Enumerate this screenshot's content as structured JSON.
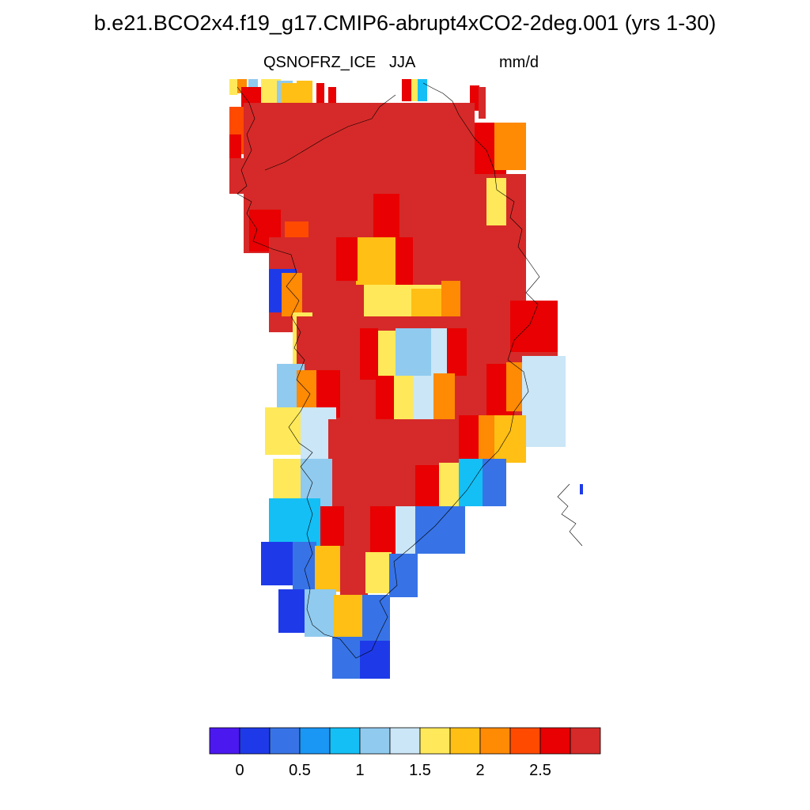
{
  "title": "b.e21.BCO2x4.f19_g17.CMIP6-abrupt4xCO2-2deg.001 (yrs 1-30)",
  "variable": "QSNOFRZ_ICE",
  "season": "JJA",
  "units": "mm/d",
  "colorbar": {
    "colors": [
      "#4b18f0",
      "#1e3ae8",
      "#3773e6",
      "#1a96f5",
      "#14bff5",
      "#90caef",
      "#cae6f7",
      "#ffe95a",
      "#ffbf14",
      "#ff8a04",
      "#ff4a00",
      "#e80002",
      "#d52a29"
    ],
    "tick_labels": [
      "0",
      "0.5",
      "1",
      "1.5",
      "2",
      "2.5"
    ]
  },
  "map_data": {
    "type": "gridded-field",
    "cells": [
      [
        "Y",
        290,
        100,
        300,
        120
      ],
      [
        "O",
        300,
        100,
        312,
        118
      ],
      [
        "L",
        314,
        100,
        326,
        122
      ],
      [
        "R",
        305,
        110,
        330,
        145
      ],
      [
        "Y",
        330,
        100,
        355,
        130
      ],
      [
        "L",
        350,
        102,
        370,
        140
      ],
      [
        "A",
        355,
        105,
        378,
        150
      ],
      [
        "A",
        375,
        102,
        395,
        145
      ],
      [
        "R",
        400,
        105,
        410,
        150
      ],
      [
        "R",
        415,
        110,
        425,
        145
      ],
      [
        "R",
        508,
        100,
        520,
        128
      ],
      [
        "S",
        528,
        100,
        540,
        128
      ],
      [
        "Y",
        520,
        100,
        528,
        128
      ],
      [
        "R",
        594,
        108,
        606,
        140
      ],
      [
        "D",
        605,
        110,
        614,
        150
      ],
      [
        "N",
        290,
        135,
        315,
        185
      ],
      [
        "N",
        300,
        160,
        340,
        195
      ],
      [
        "R",
        290,
        170,
        305,
        240
      ],
      [
        "D",
        290,
        200,
        310,
        245
      ],
      [
        "D",
        308,
        130,
        600,
        320
      ],
      [
        "R",
        600,
        155,
        640,
        230
      ],
      [
        "O",
        625,
        155,
        665,
        215
      ],
      [
        "D",
        310,
        250,
        370,
        320
      ],
      [
        "D",
        600,
        220,
        665,
        330
      ],
      [
        "Y",
        615,
        225,
        640,
        285
      ],
      [
        "R",
        315,
        265,
        355,
        318
      ],
      [
        "N",
        360,
        280,
        390,
        345
      ],
      [
        "D",
        340,
        300,
        665,
        420
      ],
      [
        "R",
        472,
        245,
        505,
        305
      ],
      [
        "A",
        450,
        300,
        505,
        360
      ],
      [
        "R",
        500,
        300,
        522,
        360
      ],
      [
        "R",
        425,
        300,
        452,
        355
      ],
      [
        "B",
        340,
        340,
        375,
        395
      ],
      [
        "O",
        356,
        345,
        382,
        400
      ],
      [
        "Y",
        370,
        395,
        395,
        460
      ],
      [
        "Y",
        460,
        360,
        580,
        420
      ],
      [
        "A",
        520,
        365,
        565,
        420
      ],
      [
        "O",
        558,
        355,
        582,
        412
      ],
      [
        "D",
        375,
        400,
        705,
        540
      ],
      [
        "R",
        645,
        380,
        705,
        445
      ],
      [
        "R",
        455,
        415,
        478,
        480
      ],
      [
        "Y",
        478,
        418,
        502,
        478
      ],
      [
        "L",
        500,
        415,
        545,
        475
      ],
      [
        "I",
        545,
        415,
        568,
        475
      ],
      [
        "R",
        565,
        415,
        590,
        475
      ],
      [
        "L",
        350,
        460,
        385,
        515
      ],
      [
        "O",
        375,
        468,
        405,
        522
      ],
      [
        "R",
        400,
        468,
        430,
        528
      ],
      [
        "R",
        475,
        475,
        500,
        535
      ],
      [
        "Y",
        498,
        475,
        525,
        535
      ],
      [
        "I",
        522,
        475,
        548,
        535
      ],
      [
        "O",
        548,
        472,
        575,
        535
      ],
      [
        "R",
        615,
        460,
        650,
        525
      ],
      [
        "O",
        640,
        458,
        670,
        520
      ],
      [
        "I",
        660,
        450,
        715,
        565
      ],
      [
        "Y",
        335,
        515,
        385,
        575
      ],
      [
        "I",
        380,
        515,
        425,
        580
      ],
      [
        "D",
        415,
        530,
        600,
        640
      ],
      [
        "R",
        580,
        525,
        610,
        585
      ],
      [
        "O",
        605,
        525,
        635,
        580
      ],
      [
        "A",
        625,
        525,
        665,
        585
      ],
      [
        "Y",
        345,
        580,
        385,
        640
      ],
      [
        "L",
        380,
        580,
        420,
        640
      ],
      [
        "R",
        525,
        588,
        558,
        640
      ],
      [
        "Y",
        555,
        585,
        585,
        640
      ],
      [
        "S",
        580,
        580,
        612,
        640
      ],
      [
        "M",
        610,
        580,
        640,
        640
      ],
      [
        "S",
        340,
        630,
        405,
        690
      ],
      [
        "R",
        405,
        640,
        440,
        690
      ],
      [
        "D",
        435,
        640,
        470,
        700
      ],
      [
        "R",
        468,
        640,
        500,
        700
      ],
      [
        "I",
        500,
        640,
        530,
        700
      ],
      [
        "C",
        525,
        640,
        560,
        700
      ],
      [
        "M",
        555,
        640,
        588,
        700
      ],
      [
        "B",
        330,
        685,
        370,
        740
      ],
      [
        "C",
        370,
        685,
        400,
        745
      ],
      [
        "A",
        398,
        690,
        435,
        748
      ],
      [
        "D",
        430,
        690,
        465,
        760
      ],
      [
        "Y",
        462,
        698,
        495,
        750
      ],
      [
        "M",
        492,
        700,
        528,
        755
      ],
      [
        "B",
        352,
        745,
        390,
        800
      ],
      [
        "L",
        385,
        745,
        425,
        805
      ],
      [
        "A",
        422,
        752,
        458,
        805
      ],
      [
        "C",
        458,
        752,
        493,
        810
      ],
      [
        "M",
        420,
        805,
        458,
        858
      ],
      [
        "B",
        455,
        810,
        493,
        858
      ],
      [
        "B",
        733,
        612,
        737,
        625
      ]
    ]
  }
}
